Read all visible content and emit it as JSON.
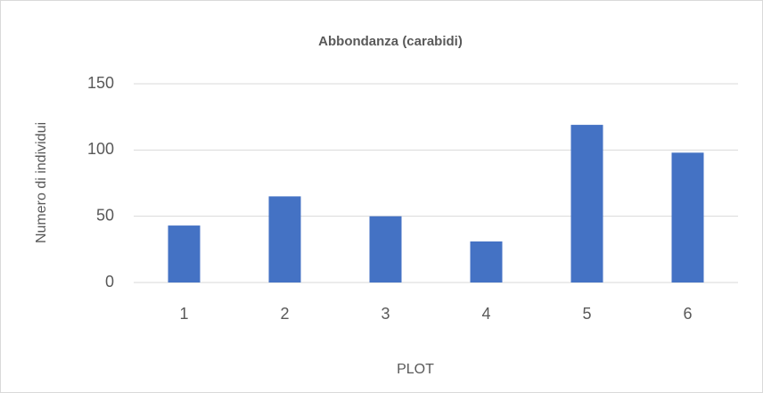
{
  "chart_data": {
    "type": "bar",
    "title": "Abbondanza (carabidi)",
    "x_label": "PLOT",
    "y_label": "Numero di individui",
    "categories": [
      "1",
      "2",
      "3",
      "4",
      "5",
      "6"
    ],
    "values": [
      43,
      65,
      50,
      31,
      119,
      98
    ],
    "color": "#4472c4",
    "ylim": [
      0,
      150
    ],
    "yticks": [
      0,
      50,
      100,
      150
    ],
    "grid": true
  }
}
